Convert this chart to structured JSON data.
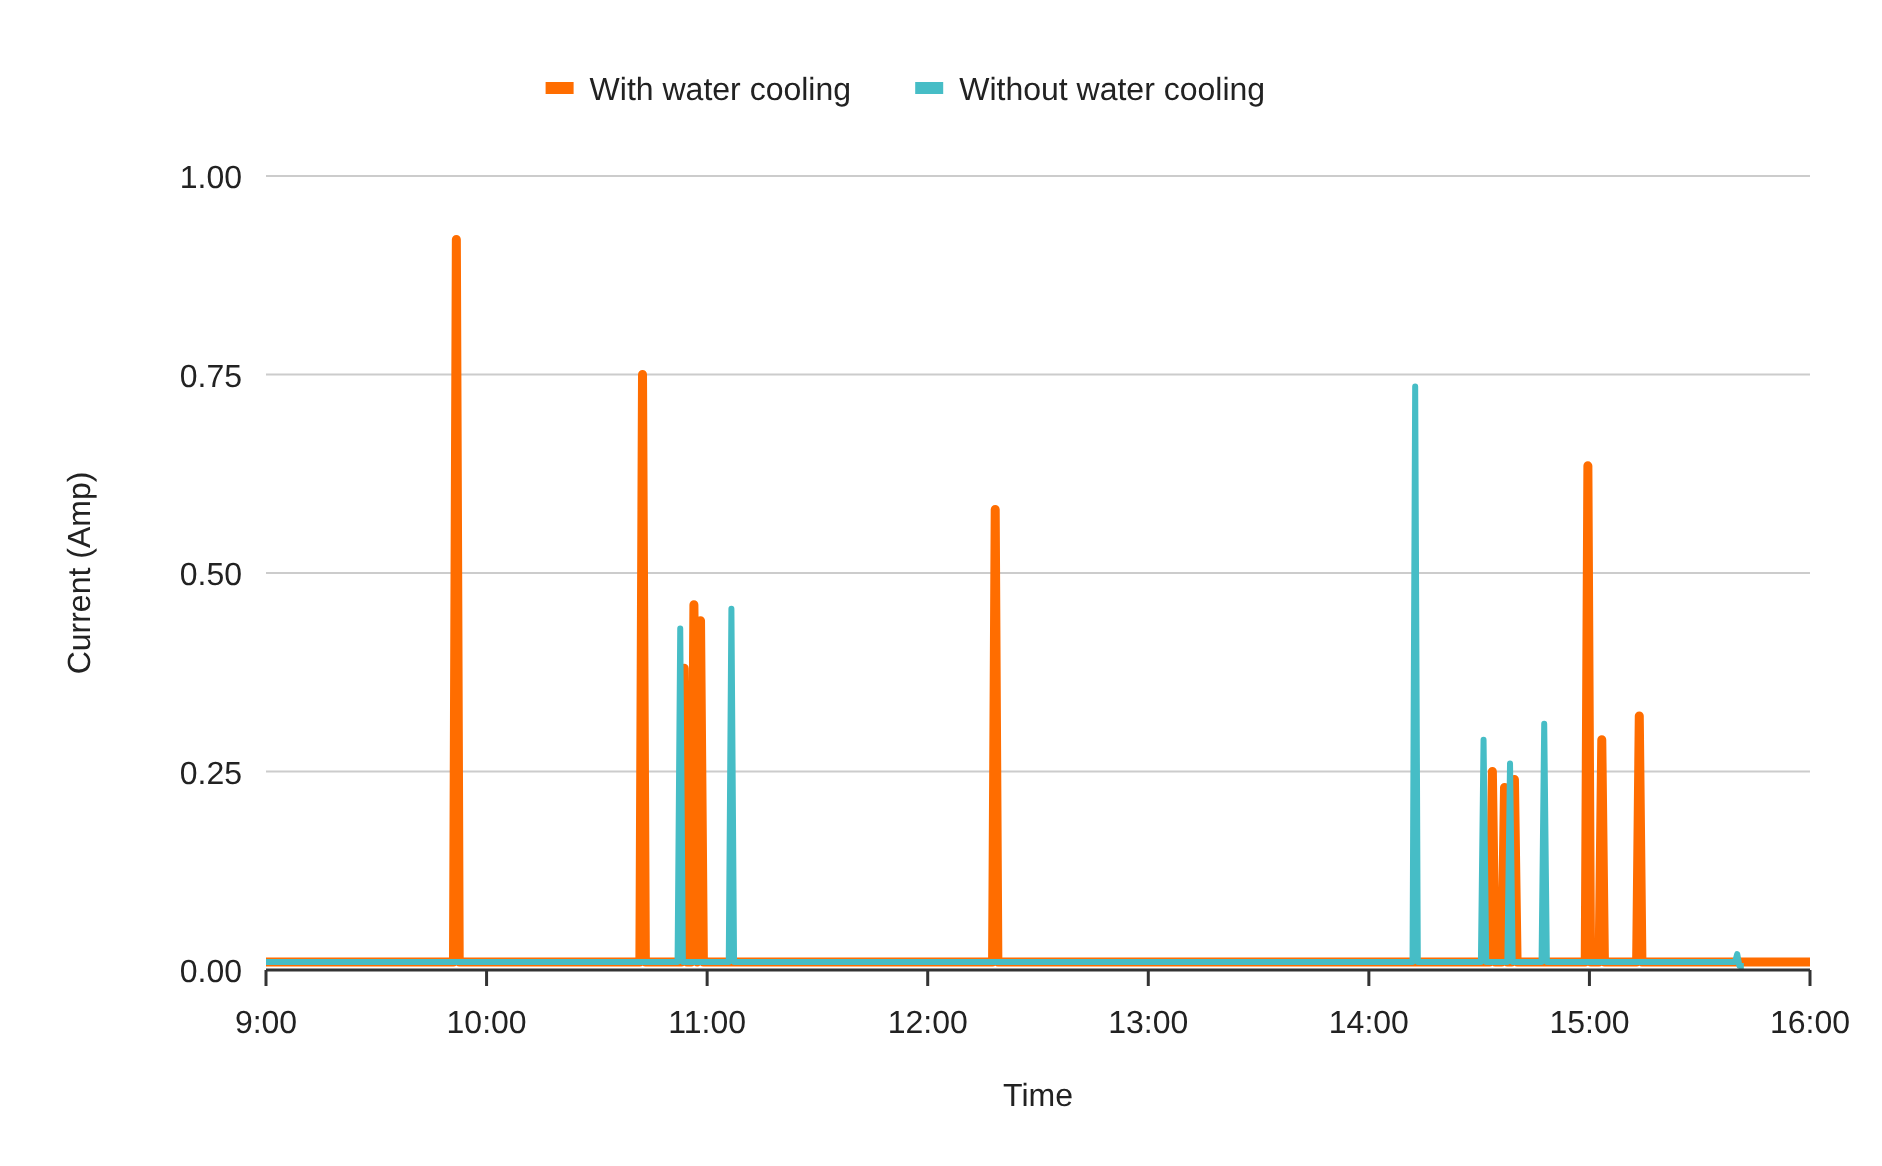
{
  "chart_data": {
    "type": "line",
    "xlabel": "Time",
    "ylabel": "Current (Amp)",
    "legend": "top",
    "grid": "y",
    "line_style": "solid",
    "marker": "none",
    "xlim": [
      9,
      16
    ],
    "xticks": [
      {
        "value": 9,
        "label": "9:00"
      },
      {
        "value": 10,
        "label": "10:00"
      },
      {
        "value": 11,
        "label": "11:00"
      },
      {
        "value": 12,
        "label": "12:00"
      },
      {
        "value": 13,
        "label": "13:00"
      },
      {
        "value": 14,
        "label": "14:00"
      },
      {
        "value": 15,
        "label": "15:00"
      },
      {
        "value": 16,
        "label": "16:00"
      }
    ],
    "ylim": [
      0,
      1
    ],
    "yticks": [
      {
        "value": 0,
        "label": "0.00"
      },
      {
        "value": 0.25,
        "label": "0.25"
      },
      {
        "value": 0.5,
        "label": "0.50"
      },
      {
        "value": 0.75,
        "label": "0.75"
      },
      {
        "value": 1,
        "label": "1.00"
      }
    ],
    "series": [
      {
        "name": "With water cooling",
        "color": "#ff6d00",
        "x": [
          9,
          9.85,
          9.863,
          9.876,
          10.695,
          10.707,
          10.72,
          10.884,
          10.896,
          10.908,
          10.928,
          10.94,
          10.955,
          10.97,
          10.983,
          12.294,
          12.306,
          12.318,
          14.548,
          14.56,
          14.572,
          14.603,
          14.615,
          14.627,
          14.648,
          14.66,
          14.672,
          14.981,
          14.993,
          15.005,
          15.044,
          15.056,
          15.068,
          15.214,
          15.226,
          15.238,
          16
        ],
        "values": [
          0.01,
          0.01,
          0.92,
          0.01,
          0.01,
          0.75,
          0.01,
          0.01,
          0.38,
          0.01,
          0.01,
          0.46,
          0.01,
          0.44,
          0.01,
          0.01,
          0.58,
          0.01,
          0.01,
          0.25,
          0.01,
          0.01,
          0.23,
          0.01,
          0.01,
          0.24,
          0.01,
          0.01,
          0.635,
          0.01,
          0.01,
          0.29,
          0.01,
          0.01,
          0.32,
          0.01,
          0.01
        ]
      },
      {
        "name": "Without water cooling",
        "color": "#46bdc6",
        "x": [
          9,
          10.866,
          10.878,
          10.89,
          11.098,
          11.11,
          11.122,
          14.198,
          14.21,
          14.222,
          14.508,
          14.52,
          14.532,
          14.628,
          14.64,
          14.652,
          14.783,
          14.795,
          14.807,
          15.66,
          15.67,
          15.68,
          15.7
        ],
        "values": [
          0.01,
          0.01,
          0.43,
          0.01,
          0.01,
          0.455,
          0.01,
          0.01,
          0.735,
          0.01,
          0.01,
          0.29,
          0.01,
          0.01,
          0.26,
          0.01,
          0.01,
          0.31,
          0.01,
          0.01,
          0.02,
          0.005,
          0.005
        ]
      }
    ]
  }
}
